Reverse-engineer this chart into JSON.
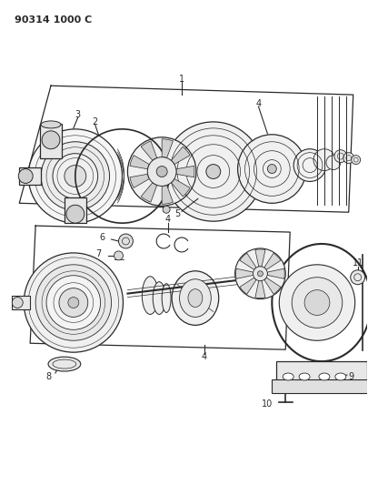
{
  "title": "90314 1000 C",
  "bg_color": "#ffffff",
  "line_color": "#2a2a2a",
  "fig_width": 4.05,
  "fig_height": 5.33,
  "dpi": 100
}
